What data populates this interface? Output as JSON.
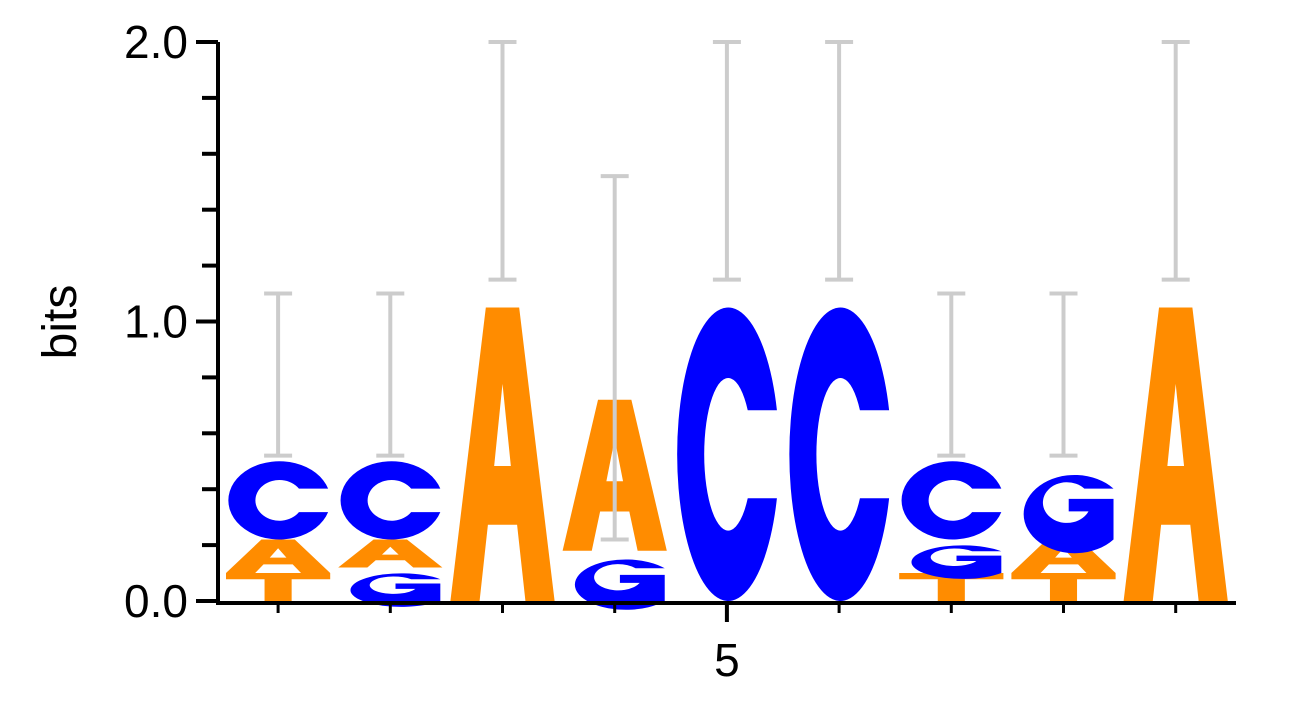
{
  "chart_data": {
    "type": "sequence-logo",
    "ylabel": "bits",
    "ylim": [
      0,
      2.0
    ],
    "yticks": [
      "0.0",
      "1.0",
      "2.0"
    ],
    "y_minor_tick_step": 0.2,
    "x_tick_labels": [
      {
        "position": 5,
        "label": "5"
      }
    ],
    "positions": [
      {
        "pos": 1,
        "stack": [
          {
            "letter": "T",
            "height": 0.1
          },
          {
            "letter": "A",
            "height": 0.12
          },
          {
            "letter": "C",
            "height": 0.28
          }
        ],
        "error_bar": [
          0.52,
          1.1
        ]
      },
      {
        "pos": 2,
        "stack": [
          {
            "letter": "G",
            "height": 0.12
          },
          {
            "letter": "A",
            "height": 0.1
          },
          {
            "letter": "C",
            "height": 0.28
          }
        ],
        "error_bar": [
          0.52,
          1.1
        ]
      },
      {
        "pos": 3,
        "stack": [
          {
            "letter": "A",
            "height": 1.05
          }
        ],
        "error_bar": [
          1.15,
          2.0
        ]
      },
      {
        "pos": 4,
        "stack": [
          {
            "letter": "G",
            "height": 0.18
          },
          {
            "letter": "A",
            "height": 0.54
          }
        ],
        "error_bar": [
          0.22,
          1.52
        ]
      },
      {
        "pos": 5,
        "stack": [
          {
            "letter": "C",
            "height": 1.05
          }
        ],
        "error_bar": [
          1.15,
          2.0
        ]
      },
      {
        "pos": 6,
        "stack": [
          {
            "letter": "C",
            "height": 1.05
          }
        ],
        "error_bar": [
          1.15,
          2.0
        ]
      },
      {
        "pos": 7,
        "stack": [
          {
            "letter": "T",
            "height": 0.1
          },
          {
            "letter": "G",
            "height": 0.12
          },
          {
            "letter": "C",
            "height": 0.28
          }
        ],
        "error_bar": [
          0.52,
          1.1
        ]
      },
      {
        "pos": 8,
        "stack": [
          {
            "letter": "T",
            "height": 0.1
          },
          {
            "letter": "A",
            "height": 0.12
          },
          {
            "letter": "G",
            "height": 0.28
          }
        ],
        "error_bar": [
          0.52,
          1.1
        ]
      },
      {
        "pos": 9,
        "stack": [
          {
            "letter": "A",
            "height": 1.05
          }
        ],
        "error_bar": [
          1.15,
          2.0
        ]
      }
    ],
    "letter_colors": {
      "A": "#ff8c00",
      "T": "#ff8c00",
      "C": "#0000ff",
      "G": "#0000ff"
    },
    "error_bar_color": "#cccccc",
    "axis_color": "#000000"
  }
}
